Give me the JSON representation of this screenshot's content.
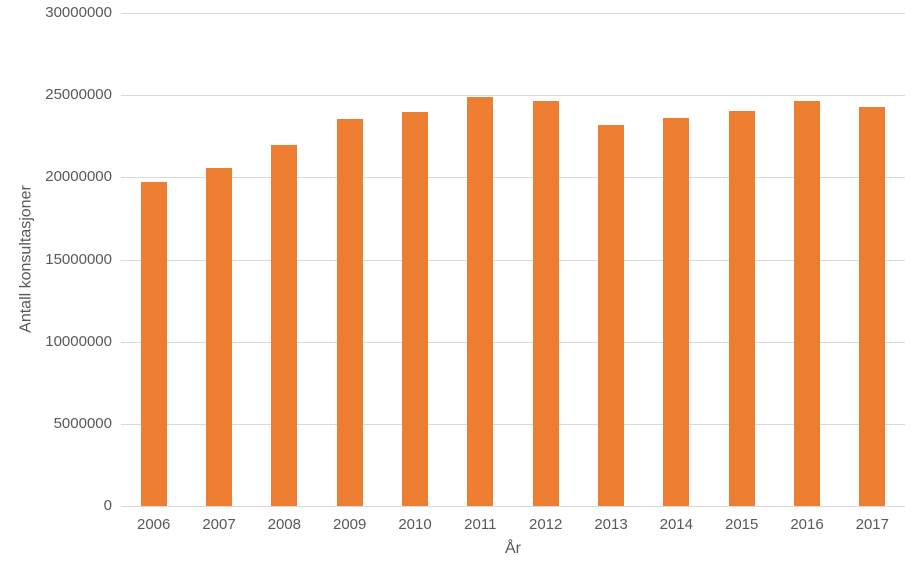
{
  "chart_data": {
    "type": "bar",
    "title": "",
    "xlabel": "År",
    "ylabel": "Antall konsultasjoner",
    "categories": [
      "2006",
      "2007",
      "2008",
      "2009",
      "2010",
      "2011",
      "2012",
      "2013",
      "2014",
      "2015",
      "2016",
      "2017"
    ],
    "values": [
      19700000,
      20600000,
      21950000,
      23550000,
      24000000,
      24900000,
      24650000,
      23200000,
      23600000,
      24050000,
      24650000,
      24300000
    ],
    "series_name": "Antall konsultasjoner",
    "ylim": [
      0,
      30000000
    ],
    "yticks": [
      0,
      5000000,
      10000000,
      15000000,
      20000000,
      25000000,
      30000000
    ],
    "ytick_labels": [
      "0",
      "5000000",
      "10000000",
      "15000000",
      "20000000",
      "25000000",
      "30000000"
    ],
    "grid": true,
    "legend": "none",
    "colors": {
      "bar": "#ed7d31",
      "gridline": "#d9d9d9",
      "axis_line": "#d9d9d9",
      "tick_label": "#595959",
      "axis_title": "#595959",
      "background": "#ffffff"
    }
  }
}
